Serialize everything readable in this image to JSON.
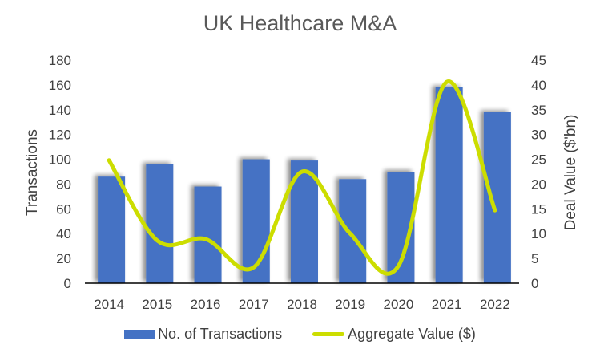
{
  "chart_data": {
    "type": "bar",
    "title": "UK Healthcare M&A",
    "categories": [
      "2014",
      "2015",
      "2016",
      "2017",
      "2018",
      "2019",
      "2020",
      "2021",
      "2022"
    ],
    "series": [
      {
        "name": "No. of Transactions",
        "type": "bar",
        "axis": "left",
        "color": "#4472C4",
        "values": [
          86,
          96,
          78,
          100,
          99,
          84,
          90,
          158,
          138
        ]
      },
      {
        "name": "Aggregate Value ($)",
        "type": "line",
        "axis": "right",
        "color": "#CCDD00",
        "values": [
          24.8,
          8.6,
          8.9,
          3.2,
          22.5,
          10,
          3.5,
          40.6,
          14.7
        ]
      }
    ],
    "xlabel": "",
    "ylabel": "Transactions",
    "ylabel_right": "Deal Value ($'bn)",
    "ylim": [
      0,
      180
    ],
    "ylim_right": [
      0,
      45
    ],
    "yticks": [
      0,
      20,
      40,
      60,
      80,
      100,
      120,
      140,
      160,
      180
    ],
    "yticks_right": [
      0,
      5,
      10,
      15,
      20,
      25,
      30,
      35,
      40,
      45
    ],
    "grid": false,
    "legend_position": "bottom"
  },
  "legend": {
    "bar_label": "No. of Transactions",
    "line_label": "Aggregate Value ($)"
  }
}
